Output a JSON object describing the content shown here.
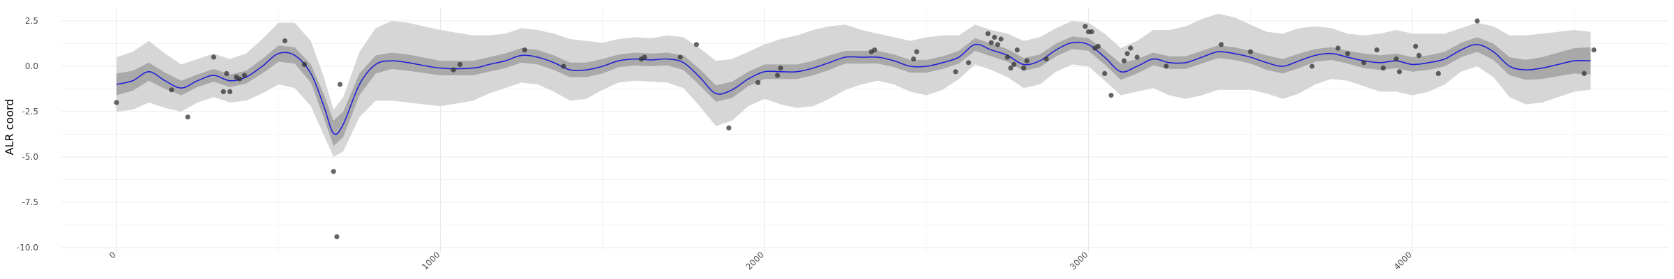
{
  "chart_data": {
    "type": "line",
    "title": "",
    "xlabel": "",
    "ylabel": "ALR coord",
    "xlim": [
      -300,
      4750
    ],
    "ylim": [
      -10,
      2.5
    ],
    "x_ticks": [
      0,
      1000,
      2000,
      3000,
      4000
    ],
    "y_ticks": [
      2.5,
      0.0,
      -2.5,
      -5.0,
      -7.5,
      -10.0
    ],
    "y_tick_labels": [
      "2.5",
      "0.0",
      "-2.5",
      "-5.0",
      "-7.5",
      "-10.0"
    ],
    "x_tick_rotation": 45,
    "grid": true,
    "legend": "none",
    "colors": {
      "mean_line": "#2020d8",
      "inner_band": "#a9a9a9",
      "outer_band": "#d6d6d6",
      "points": "#333333"
    },
    "mean_curve": {
      "x": [
        0,
        50,
        100,
        150,
        200,
        250,
        300,
        350,
        400,
        450,
        500,
        550,
        600,
        640,
        670,
        700,
        750,
        800,
        850,
        900,
        1000,
        1100,
        1150,
        1200,
        1250,
        1300,
        1350,
        1400,
        1450,
        1500,
        1550,
        1600,
        1650,
        1700,
        1750,
        1800,
        1850,
        1900,
        1950,
        2000,
        2050,
        2100,
        2150,
        2200,
        2250,
        2300,
        2350,
        2400,
        2450,
        2500,
        2550,
        2600,
        2650,
        2700,
        2750,
        2800,
        2850,
        2900,
        2950,
        3000,
        3050,
        3100,
        3150,
        3200,
        3250,
        3300,
        3350,
        3400,
        3450,
        3500,
        3550,
        3600,
        3650,
        3700,
        3750,
        3800,
        3850,
        3900,
        3950,
        4000,
        4050,
        4100,
        4150,
        4200,
        4250,
        4300,
        4350,
        4400,
        4450,
        4500,
        4550
      ],
      "y": [
        -1.0,
        -0.8,
        -0.3,
        -0.8,
        -1.2,
        -0.8,
        -0.5,
        -0.8,
        -0.6,
        0.0,
        0.7,
        0.6,
        -0.4,
        -2.2,
        -3.7,
        -3.2,
        -1.0,
        0.1,
        0.3,
        0.2,
        -0.1,
        -0.1,
        0.1,
        0.3,
        0.6,
        0.5,
        0.2,
        -0.2,
        -0.2,
        0.0,
        0.3,
        0.4,
        0.35,
        0.4,
        0.2,
        -0.6,
        -1.5,
        -1.3,
        -0.7,
        -0.3,
        -0.3,
        -0.3,
        -0.1,
        0.2,
        0.5,
        0.5,
        0.5,
        0.3,
        0.0,
        0.0,
        0.2,
        0.5,
        1.2,
        0.9,
        0.6,
        0.1,
        0.3,
        0.9,
        1.3,
        1.2,
        0.5,
        -0.3,
        0.0,
        0.4,
        0.2,
        0.2,
        0.5,
        0.8,
        0.7,
        0.5,
        0.2,
        0.0,
        0.3,
        0.6,
        0.7,
        0.5,
        0.3,
        0.2,
        0.3,
        0.1,
        0.2,
        0.4,
        0.9,
        1.2,
        0.8,
        0.0,
        -0.2,
        -0.1,
        0.1,
        0.3,
        0.3
      ],
      "inner_band_halfwidth": [
        0.6,
        0.55,
        0.5,
        0.45,
        0.4,
        0.35,
        0.35,
        0.35,
        0.35,
        0.4,
        0.45,
        0.45,
        0.5,
        0.65,
        0.7,
        0.7,
        0.6,
        0.5,
        0.45,
        0.45,
        0.4,
        0.4,
        0.4,
        0.4,
        0.4,
        0.4,
        0.4,
        0.4,
        0.4,
        0.4,
        0.35,
        0.35,
        0.35,
        0.35,
        0.4,
        0.45,
        0.45,
        0.45,
        0.4,
        0.4,
        0.4,
        0.4,
        0.4,
        0.4,
        0.35,
        0.35,
        0.35,
        0.35,
        0.35,
        0.35,
        0.35,
        0.35,
        0.35,
        0.35,
        0.35,
        0.35,
        0.35,
        0.35,
        0.35,
        0.35,
        0.4,
        0.45,
        0.4,
        0.35,
        0.35,
        0.35,
        0.35,
        0.35,
        0.35,
        0.35,
        0.4,
        0.4,
        0.4,
        0.35,
        0.35,
        0.35,
        0.4,
        0.4,
        0.4,
        0.4,
        0.4,
        0.4,
        0.4,
        0.4,
        0.45,
        0.5,
        0.55,
        0.6,
        0.65,
        0.7,
        0.75
      ],
      "outer_band_halfwidth": [
        1.5,
        1.6,
        1.7,
        1.5,
        1.3,
        1.2,
        1.2,
        1.2,
        1.3,
        1.5,
        1.7,
        1.8,
        1.8,
        1.6,
        1.3,
        1.5,
        1.8,
        2.0,
        2.2,
        2.2,
        2.1,
        1.8,
        1.6,
        1.5,
        1.5,
        1.5,
        1.6,
        1.7,
        1.6,
        1.3,
        1.2,
        1.2,
        1.2,
        1.3,
        1.4,
        1.6,
        1.8,
        1.7,
        1.5,
        1.5,
        1.8,
        2.0,
        2.1,
        2.0,
        1.8,
        1.5,
        1.3,
        1.3,
        1.4,
        1.6,
        1.5,
        1.2,
        1.1,
        1.1,
        1.2,
        1.3,
        1.3,
        1.2,
        1.2,
        1.2,
        1.3,
        1.3,
        1.4,
        1.6,
        1.8,
        2.0,
        2.1,
        2.1,
        2.0,
        1.8,
        1.7,
        1.8,
        1.8,
        1.6,
        1.4,
        1.3,
        1.4,
        1.6,
        1.7,
        1.7,
        1.6,
        1.4,
        1.2,
        1.2,
        1.4,
        1.7,
        1.9,
        1.9,
        1.8,
        1.7,
        1.6
      ]
    },
    "observations": {
      "x": [
        0,
        170,
        220,
        300,
        330,
        340,
        350,
        370,
        380,
        395,
        520,
        580,
        670,
        680,
        690,
        1040,
        1060,
        1260,
        1380,
        1620,
        1630,
        1740,
        1790,
        1890,
        1980,
        2040,
        2050,
        2330,
        2340,
        2460,
        2470,
        2590,
        2630,
        2690,
        2700,
        2710,
        2720,
        2730,
        2750,
        2760,
        2770,
        2780,
        2800,
        2810,
        2870,
        2990,
        3000,
        3010,
        3020,
        3030,
        3050,
        3070,
        3110,
        3120,
        3130,
        3150,
        3240,
        3410,
        3500,
        3690,
        3770,
        3800,
        3850,
        3890,
        3910,
        3950,
        3960,
        4010,
        4020,
        4080,
        4200,
        4530,
        4560
      ],
      "y": [
        -2.0,
        -1.3,
        -2.8,
        0.5,
        -1.4,
        -0.4,
        -1.4,
        -0.6,
        -0.7,
        -0.5,
        1.4,
        0.1,
        -5.8,
        -9.4,
        -1.0,
        -0.2,
        0.1,
        0.9,
        0.0,
        0.4,
        0.5,
        0.5,
        1.2,
        -3.4,
        -0.9,
        -0.5,
        -0.1,
        0.8,
        0.9,
        0.4,
        0.8,
        -0.3,
        0.2,
        1.8,
        1.3,
        1.6,
        1.2,
        1.5,
        0.5,
        -0.1,
        0.1,
        0.9,
        -0.1,
        0.3,
        0.4,
        2.2,
        1.9,
        1.9,
        1.0,
        1.1,
        -0.4,
        -1.6,
        0.3,
        0.7,
        1.0,
        0.5,
        0.0,
        1.2,
        0.8,
        0.0,
        1.0,
        0.7,
        0.2,
        0.9,
        -0.1,
        0.4,
        -0.3,
        1.1,
        0.6,
        -0.4,
        2.5,
        -0.4,
        0.9
      ]
    }
  }
}
